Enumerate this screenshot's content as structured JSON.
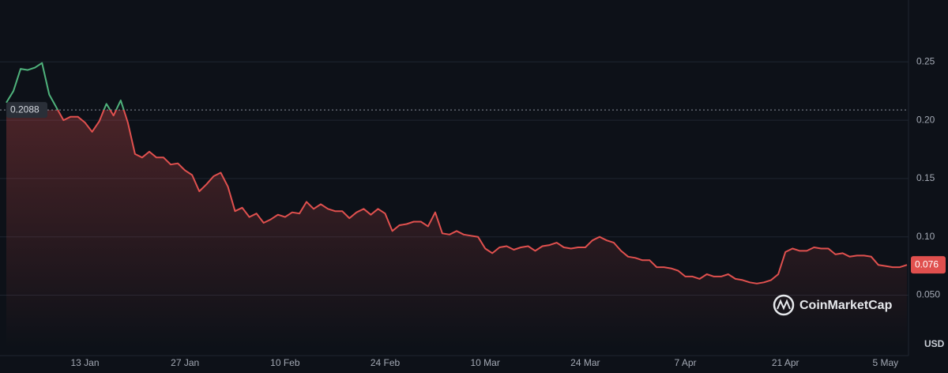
{
  "chart_data": {
    "type": "line",
    "categories": [
      null,
      null,
      null,
      null,
      null,
      null,
      null,
      null,
      null,
      null,
      null,
      "13 Jan",
      null,
      null,
      null,
      null,
      null,
      null,
      null,
      null,
      null,
      null,
      null,
      null,
      null,
      "27 Jan",
      null,
      null,
      null,
      null,
      null,
      null,
      null,
      null,
      null,
      null,
      null,
      null,
      null,
      "10 Feb",
      null,
      null,
      null,
      null,
      null,
      null,
      null,
      null,
      null,
      null,
      null,
      null,
      null,
      "24 Feb",
      null,
      null,
      null,
      null,
      null,
      null,
      null,
      null,
      null,
      null,
      null,
      null,
      null,
      "10 Mar",
      null,
      null,
      null,
      null,
      null,
      null,
      null,
      null,
      null,
      null,
      null,
      null,
      null,
      "24 Mar",
      null,
      null,
      null,
      null,
      null,
      null,
      null,
      null,
      null,
      null,
      null,
      null,
      null,
      "7 Apr",
      null,
      null,
      null,
      null,
      null,
      null,
      null,
      null,
      null,
      null,
      null,
      null,
      null,
      "21 Apr",
      null,
      null,
      null,
      null,
      null,
      null,
      null,
      null,
      null,
      null,
      null,
      null,
      null,
      "5 May",
      null,
      null,
      null
    ],
    "values": [
      0.215,
      0.225,
      0.244,
      0.243,
      0.245,
      0.249,
      0.222,
      0.211,
      0.2,
      0.203,
      0.203,
      0.198,
      0.19,
      0.199,
      0.214,
      0.204,
      0.217,
      0.198,
      0.171,
      0.168,
      0.173,
      0.168,
      0.168,
      0.162,
      0.163,
      0.157,
      0.153,
      0.139,
      0.145,
      0.152,
      0.155,
      0.143,
      0.122,
      0.125,
      0.117,
      0.12,
      0.112,
      0.115,
      0.119,
      0.117,
      0.121,
      0.12,
      0.13,
      0.124,
      0.128,
      0.124,
      0.122,
      0.122,
      0.116,
      0.121,
      0.124,
      0.119,
      0.124,
      0.12,
      0.105,
      0.11,
      0.111,
      0.113,
      0.113,
      0.109,
      0.121,
      0.103,
      0.102,
      0.105,
      0.102,
      0.101,
      0.1,
      0.09,
      0.086,
      0.091,
      0.092,
      0.089,
      0.091,
      0.092,
      0.088,
      0.092,
      0.093,
      0.095,
      0.091,
      0.09,
      0.091,
      0.091,
      0.097,
      0.1,
      0.097,
      0.095,
      0.088,
      0.083,
      0.082,
      0.08,
      0.08,
      0.074,
      0.074,
      0.073,
      0.071,
      0.066,
      0.066,
      0.064,
      0.068,
      0.066,
      0.066,
      0.068,
      0.064,
      0.063,
      0.061,
      0.06,
      0.061,
      0.063,
      0.068,
      0.087,
      0.09,
      0.088,
      0.088,
      0.091,
      0.09,
      0.09,
      0.085,
      0.086,
      0.083,
      0.084,
      0.084,
      0.083,
      0.076,
      0.075,
      0.074,
      0.074,
      0.076
    ],
    "up_color": "#4fb37c",
    "down_color": "#e0504e",
    "reference_price": 0.2088,
    "current_price": 0.076,
    "ylim": [
      0.005,
      0.303
    ],
    "yticks": [
      {
        "value": 0.05,
        "label": "0.050"
      },
      {
        "value": 0.1,
        "label": "0.10"
      },
      0.15,
      {
        "value": 0.2,
        "label": "0.20"
      },
      0.25
    ],
    "grid": true,
    "currency": "USD",
    "watermark": "CoinMarketCap"
  }
}
